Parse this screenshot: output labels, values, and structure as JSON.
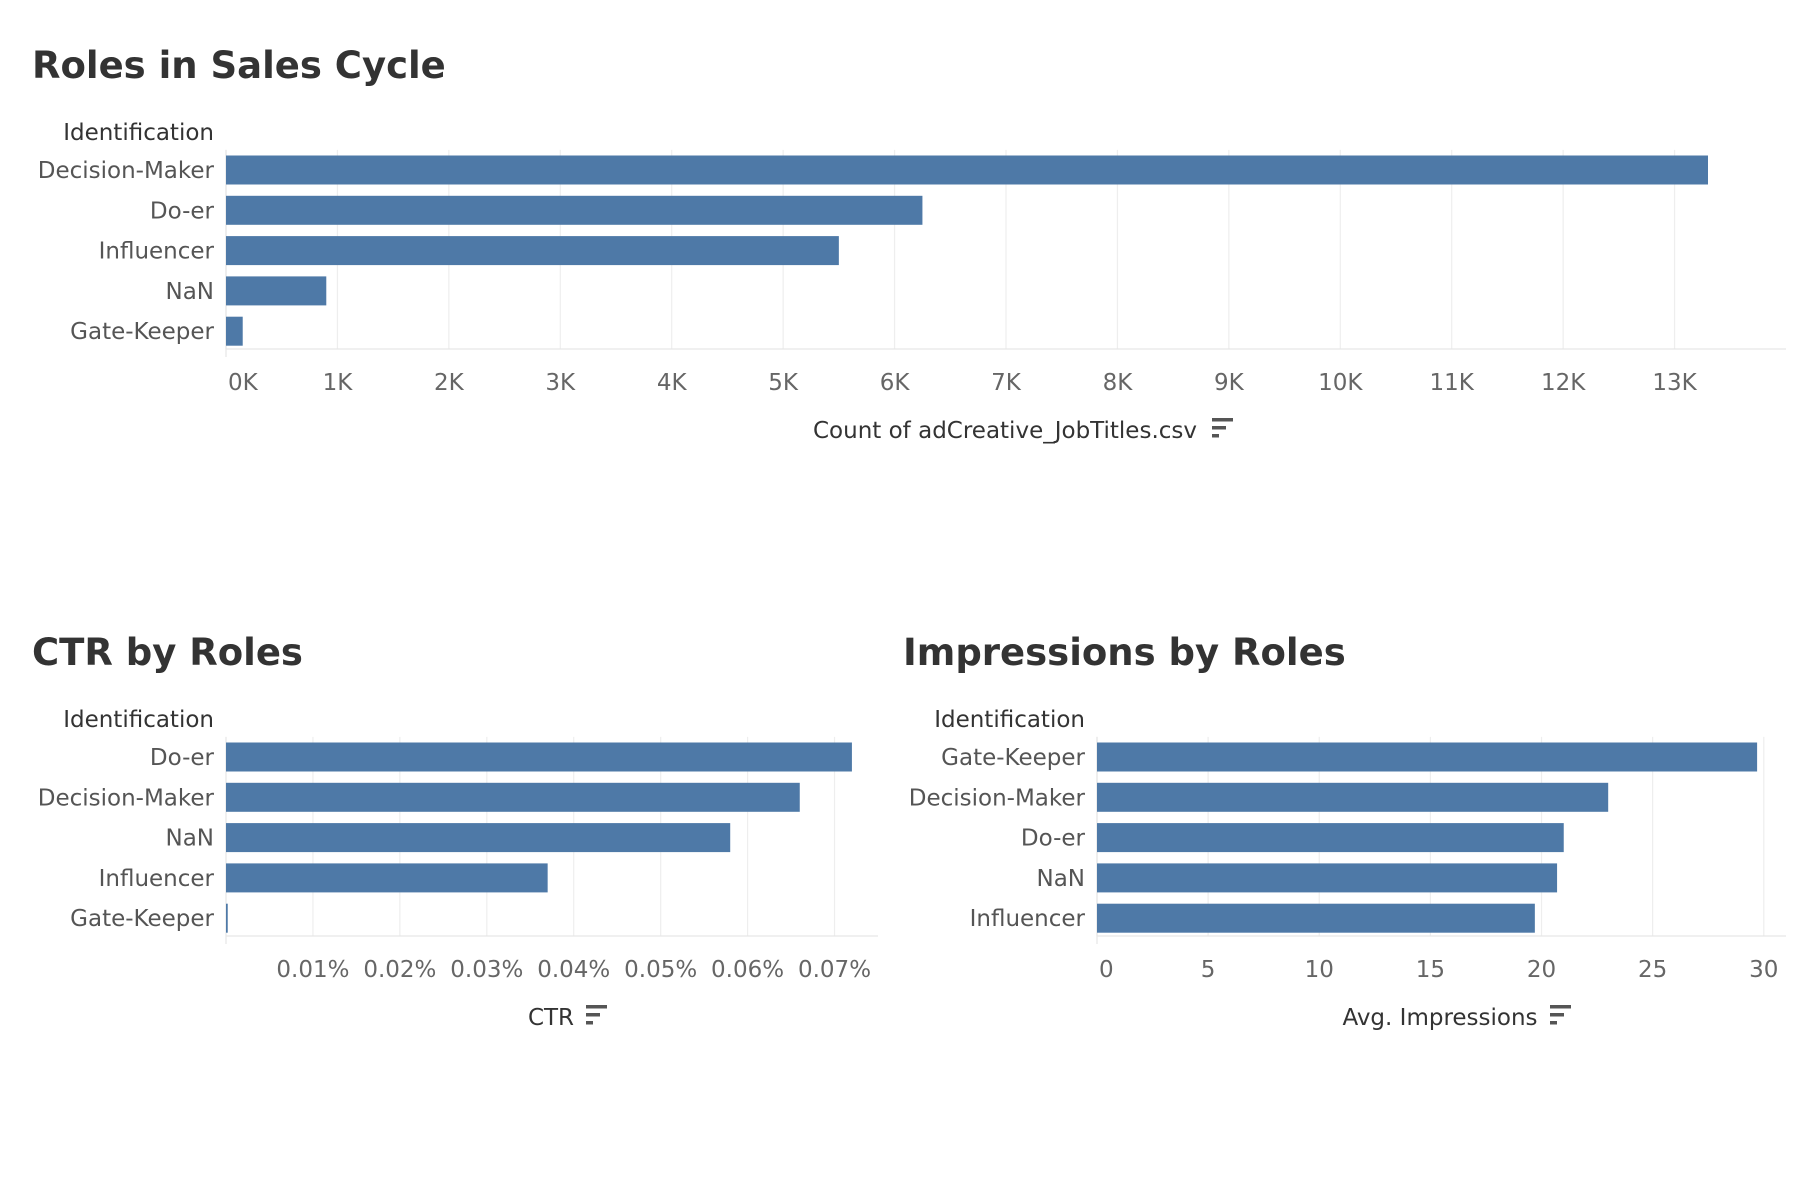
{
  "colors": {
    "bar": "#4e79a7",
    "title": "#333333",
    "label": "#555555"
  },
  "icons": {
    "sort": "sort-descending-icon"
  },
  "chart_data": [
    {
      "id": "roles",
      "type": "bar",
      "orientation": "horizontal",
      "title": "Roles in Sales Cycle",
      "row_header": "Identification",
      "categories": [
        "Decision-Maker",
        "Do-er",
        "Influencer",
        "NaN",
        "Gate-Keeper"
      ],
      "values": [
        13300,
        6250,
        5500,
        900,
        150
      ],
      "xlabel": "Count of adCreative_JobTitles.csv",
      "xlim": [
        0,
        14000
      ],
      "ticks": [
        0,
        1000,
        2000,
        3000,
        4000,
        5000,
        6000,
        7000,
        8000,
        9000,
        10000,
        11000,
        12000,
        13000
      ],
      "tick_labels": [
        "0K",
        "1K",
        "2K",
        "3K",
        "4K",
        "5K",
        "6K",
        "7K",
        "8K",
        "9K",
        "10K",
        "11K",
        "12K",
        "13K"
      ],
      "grid": true,
      "legend": "none"
    },
    {
      "id": "ctr",
      "type": "bar",
      "orientation": "horizontal",
      "title": "CTR by Roles",
      "row_header": "Identification",
      "categories": [
        "Do-er",
        "Decision-Maker",
        "NaN",
        "Influencer",
        "Gate-Keeper"
      ],
      "values": [
        0.072,
        0.066,
        0.058,
        0.037,
        0.0002
      ],
      "value_unit": "%",
      "xlabel": "CTR",
      "xlim": [
        0,
        0.075
      ],
      "ticks": [
        0.01,
        0.02,
        0.03,
        0.04,
        0.05,
        0.06,
        0.07
      ],
      "tick_labels": [
        "0.01%",
        "0.02%",
        "0.03%",
        "0.04%",
        "0.05%",
        "0.06%",
        "0.07%"
      ],
      "grid": true,
      "legend": "none"
    },
    {
      "id": "impressions",
      "type": "bar",
      "orientation": "horizontal",
      "title": "Impressions by Roles",
      "row_header": "Identification",
      "categories": [
        "Gate-Keeper",
        "Decision-Maker",
        "Do-er",
        "NaN",
        "Influencer"
      ],
      "values": [
        29.7,
        23.0,
        21.0,
        20.7,
        19.7
      ],
      "xlabel": "Avg. Impressions",
      "xlim": [
        0,
        31
      ],
      "ticks": [
        0,
        5,
        10,
        15,
        20,
        25,
        30
      ],
      "tick_labels": [
        "0",
        "5",
        "10",
        "15",
        "20",
        "25",
        "30"
      ],
      "grid": true,
      "legend": "none"
    }
  ]
}
